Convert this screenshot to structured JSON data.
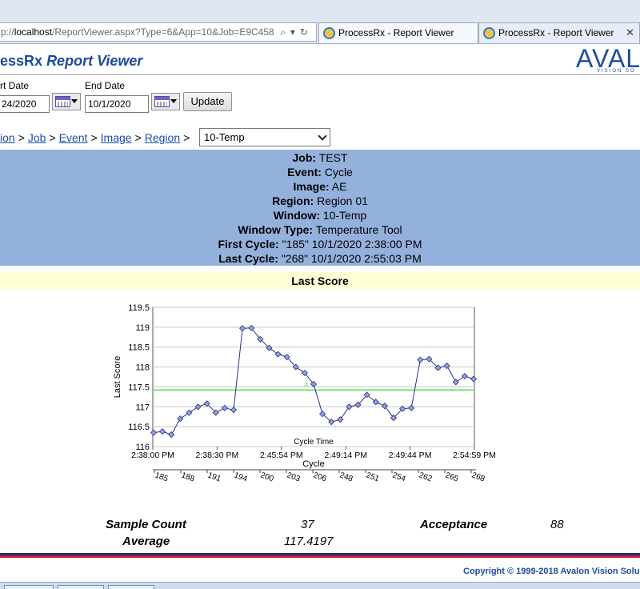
{
  "browser": {
    "address_gray1": "p://",
    "address_host": "localhost",
    "address_gray2": "/ReportViewer.aspx?Type=6&App=10&Job=E9C458",
    "tabs": [
      {
        "label": "ProcessRx - Report Viewer"
      },
      {
        "label": "ProcessRx - Report Viewer"
      }
    ]
  },
  "app": {
    "title_prefix": "essRx",
    "title_italic": "Report Viewer",
    "logo_big": "AVALO",
    "logo_small": "VISION SO"
  },
  "filters": {
    "start_label": "rt Date",
    "start_value": "24/2020",
    "end_label": "End Date",
    "end_value": "10/1/2020",
    "update_label": "Update"
  },
  "breadcrumb": {
    "items": [
      "ion",
      "Job",
      "Event",
      "Image",
      "Region"
    ],
    "separator": ">",
    "select_value": "10-Temp"
  },
  "info": [
    {
      "label": "Job:",
      "value": "TEST"
    },
    {
      "label": "Event:",
      "value": "Cycle"
    },
    {
      "label": "Image:",
      "value": "AE"
    },
    {
      "label": "Region:",
      "value": "Region 01"
    },
    {
      "label": "Window:",
      "value": "10-Temp"
    },
    {
      "label": "Window Type:",
      "value": "Temperature Tool"
    },
    {
      "label": "First Cycle:",
      "value": "\"185\" 10/1/2020 2:38:00 PM"
    },
    {
      "label": "Last Cycle:",
      "value": "\"268\" 10/1/2020 2:55:03 PM"
    }
  ],
  "section_title": "Last Score",
  "chart_data": {
    "type": "line",
    "ylabel": "Last Score",
    "inner_xlabel": "Cycle Time",
    "xlabel": "Cycle",
    "ylim": [
      116,
      119.5
    ],
    "yticks": [
      "119.5",
      "119",
      "118.5",
      "118",
      "117.5",
      "117",
      "116.5",
      "116"
    ],
    "time_ticks": [
      "2:38:00 PM",
      "2:38:30 PM",
      "2:45:54 PM",
      "2:49:14 PM",
      "2:49:44 PM",
      "2:54:59 PM"
    ],
    "cycle_ticks": [
      "185",
      "188",
      "191",
      "194",
      "200",
      "203",
      "206",
      "248",
      "251",
      "254",
      "262",
      "265",
      "268"
    ],
    "acceptance_line": 117.42,
    "acceptance_label": "A",
    "line_color": "#2b2f86",
    "acceptance_color": "#7de07d",
    "grid": true,
    "values": [
      116.35,
      116.38,
      116.3,
      116.7,
      116.85,
      117.0,
      117.08,
      116.85,
      116.97,
      116.92,
      118.97,
      118.98,
      118.7,
      118.48,
      118.32,
      118.25,
      118.0,
      117.85,
      117.57,
      116.82,
      116.62,
      116.68,
      117.0,
      117.05,
      117.3,
      117.12,
      117.02,
      116.72,
      116.95,
      116.97,
      118.18,
      118.2,
      117.98,
      118.03,
      117.62,
      117.77,
      117.7
    ]
  },
  "stats": {
    "sample_count_label": "Sample Count",
    "sample_count": "37",
    "acceptance_label": "Acceptance",
    "acceptance": "88",
    "average_label": "Average",
    "average": "117.4197"
  },
  "footer": {
    "copyright": "Copyright © 1999-2018 Avalon Vision Solu"
  }
}
